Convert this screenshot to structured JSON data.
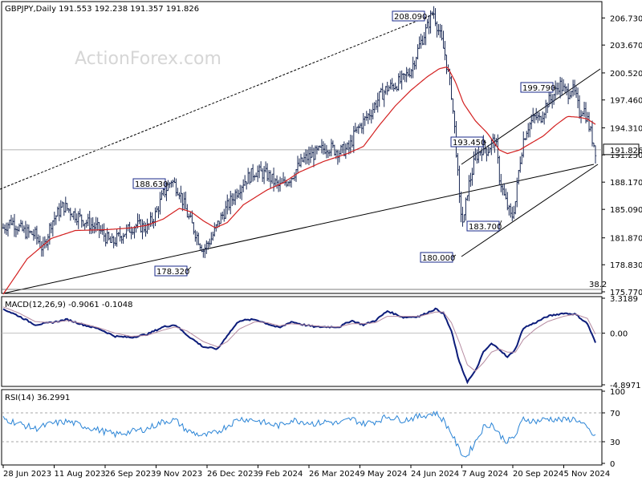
{
  "header": {
    "symbol_line": "GBPJPY,Daily  191.553 192.238 191.357 191.826",
    "watermark": "ActionForex.com"
  },
  "colors": {
    "price": "#1b2a55",
    "ma": "#d32020",
    "macd_main": "#0c1c7a",
    "macd_signal": "#b58aa0",
    "rsi": "#2a84d6",
    "trend": "#000000",
    "fib": "#555555"
  },
  "chart_data": [
    {
      "type": "line",
      "panel": "price",
      "title": "GBPJPY,Daily",
      "ohlc_latest": {
        "open": 191.553,
        "high": 192.238,
        "low": 191.357,
        "close": 191.826
      },
      "ylim": [
        175.77,
        208.4
      ],
      "y_ticks": [
        "206.730",
        "203.670",
        "200.520",
        "197.460",
        "194.310",
        "191.250",
        "188.170",
        "185.090",
        "181.870",
        "178.830",
        "175.770"
      ],
      "current_price_label": "191.826",
      "x_tick_labels": [
        "28 Jun 2023",
        "11 Aug 2023",
        "26 Sep 2023",
        "9 Nov 2023",
        "26 Dec 2023",
        "9 Feb 2024",
        "26 Mar 2024",
        "9 May 2024",
        "24 Jun 2024",
        "7 Aug 2024",
        "20 Sep 2024",
        "5 Nov 2024"
      ],
      "n_bars": 375,
      "price_anchors": [
        [
          0,
          183.0
        ],
        [
          10,
          183.8
        ],
        [
          25,
          182.6
        ],
        [
          40,
          182.2
        ],
        [
          50,
          180.5
        ],
        [
          60,
          183.6
        ],
        [
          75,
          185.5
        ],
        [
          90,
          184.5
        ],
        [
          105,
          183.6
        ],
        [
          120,
          182.8
        ],
        [
          135,
          181.2
        ],
        [
          150,
          182.4
        ],
        [
          165,
          183.3
        ],
        [
          180,
          183.0
        ],
        [
          190,
          184.5
        ],
        [
          200,
          186.8
        ],
        [
          210,
          188.4
        ],
        [
          220,
          187.2
        ],
        [
          230,
          184.5
        ],
        [
          240,
          182.5
        ],
        [
          250,
          180.5
        ],
        [
          260,
          181.8
        ],
        [
          270,
          183.8
        ],
        [
          280,
          185.4
        ],
        [
          290,
          186.9
        ],
        [
          300,
          188.2
        ],
        [
          315,
          189.4
        ],
        [
          330,
          189.0
        ],
        [
          345,
          187.6
        ],
        [
          360,
          188.8
        ],
        [
          375,
          190.7
        ],
        [
          390,
          191.4
        ],
        [
          405,
          192.2
        ],
        [
          420,
          191.6
        ],
        [
          432,
          192.0
        ],
        [
          440,
          193.8
        ],
        [
          450,
          195.0
        ],
        [
          460,
          196.2
        ],
        [
          470,
          197.8
        ],
        [
          480,
          198.8
        ],
        [
          490,
          199.2
        ],
        [
          500,
          199.8
        ],
        [
          510,
          201.0
        ],
        [
          520,
          203.6
        ],
        [
          530,
          205.7
        ],
        [
          537,
          207.6
        ],
        [
          545,
          205.0
        ],
        [
          552,
          202.6
        ],
        [
          560,
          198.2
        ],
        [
          565,
          193.2
        ],
        [
          570,
          186.0
        ],
        [
          575,
          183.2
        ],
        [
          580,
          187.2
        ],
        [
          585,
          189.0
        ],
        [
          590,
          191.0
        ],
        [
          595,
          191.6
        ],
        [
          600,
          192.2
        ],
        [
          605,
          191.7
        ],
        [
          610,
          192.6
        ],
        [
          615,
          192.9
        ],
        [
          620,
          188.8
        ],
        [
          625,
          186.8
        ],
        [
          630,
          185.4
        ],
        [
          635,
          184.0
        ],
        [
          640,
          186.0
        ],
        [
          645,
          190.2
        ],
        [
          650,
          193.0
        ],
        [
          655,
          194.4
        ],
        [
          660,
          195.0
        ],
        [
          665,
          195.6
        ],
        [
          670,
          195.2
        ],
        [
          675,
          196.2
        ],
        [
          680,
          197.2
        ],
        [
          685,
          197.6
        ],
        [
          690,
          198.4
        ],
        [
          695,
          199.3
        ],
        [
          700,
          198.6
        ],
        [
          705,
          198.2
        ],
        [
          710,
          198.8
        ],
        [
          715,
          198.0
        ],
        [
          720,
          196.0
        ],
        [
          725,
          196.6
        ],
        [
          730,
          195.2
        ],
        [
          735,
          193.4
        ],
        [
          740,
          191.8
        ]
      ],
      "ma_anchors": [
        [
          0,
          175.5
        ],
        [
          30,
          179.5
        ],
        [
          60,
          181.8
        ],
        [
          90,
          182.7
        ],
        [
          130,
          182.8
        ],
        [
          160,
          183.0
        ],
        [
          180,
          183.3
        ],
        [
          200,
          184.0
        ],
        [
          220,
          185.2
        ],
        [
          235,
          184.8
        ],
        [
          250,
          183.8
        ],
        [
          265,
          183.0
        ],
        [
          280,
          183.6
        ],
        [
          300,
          185.6
        ],
        [
          330,
          187.3
        ],
        [
          350,
          188.1
        ],
        [
          370,
          189.3
        ],
        [
          400,
          190.5
        ],
        [
          430,
          191.4
        ],
        [
          450,
          192.2
        ],
        [
          470,
          194.6
        ],
        [
          490,
          196.8
        ],
        [
          510,
          198.6
        ],
        [
          530,
          200.1
        ],
        [
          545,
          201.0
        ],
        [
          555,
          201.2
        ],
        [
          565,
          199.5
        ],
        [
          575,
          197.1
        ],
        [
          590,
          195.1
        ],
        [
          605,
          193.7
        ],
        [
          620,
          191.8
        ],
        [
          630,
          191.4
        ],
        [
          645,
          191.8
        ],
        [
          660,
          192.6
        ],
        [
          675,
          193.4
        ],
        [
          690,
          194.6
        ],
        [
          705,
          195.6
        ],
        [
          720,
          195.5
        ],
        [
          730,
          195.3
        ],
        [
          740,
          194.7
        ]
      ],
      "annotations": [
        {
          "text": "208.090",
          "value": 208.09
        },
        {
          "text": "188.630",
          "value": 188.63
        },
        {
          "text": "178.320",
          "value": 178.32
        },
        {
          "text": "193.450",
          "value": 193.45
        },
        {
          "text": "183.700",
          "value": 183.7
        },
        {
          "text": "180.000",
          "value": 180.0
        },
        {
          "text": "199.790",
          "value": 199.79
        }
      ],
      "fib_label": "38.2"
    },
    {
      "type": "line",
      "panel": "macd",
      "title": "MACD(12,26,9) -0.9061 -0.1048",
      "ylim": [
        -4.8971,
        3.3189
      ],
      "y_ticks": [
        "3.3189",
        "0.00",
        "-4.8971"
      ],
      "series": [
        {
          "name": "MACD",
          "values_anchor": [
            [
              0,
              2.3
            ],
            [
              20,
              1.6
            ],
            [
              40,
              0.8
            ],
            [
              60,
              1.0
            ],
            [
              80,
              1.3
            ],
            [
              100,
              0.8
            ],
            [
              120,
              0.4
            ],
            [
              140,
              -0.3
            ],
            [
              160,
              -0.4
            ],
            [
              180,
              -0.1
            ],
            [
              200,
              0.6
            ],
            [
              215,
              0.8
            ],
            [
              230,
              -0.2
            ],
            [
              250,
              -1.3
            ],
            [
              268,
              -1.5
            ],
            [
              280,
              -0.2
            ],
            [
              295,
              1.2
            ],
            [
              315,
              1.3
            ],
            [
              330,
              0.9
            ],
            [
              345,
              0.5
            ],
            [
              360,
              1.1
            ],
            [
              375,
              0.8
            ],
            [
              390,
              0.6
            ],
            [
              405,
              0.6
            ],
            [
              420,
              0.6
            ],
            [
              435,
              1.2
            ],
            [
              450,
              0.8
            ],
            [
              465,
              1.2
            ],
            [
              480,
              2.1
            ],
            [
              500,
              1.5
            ],
            [
              520,
              1.6
            ],
            [
              540,
              2.3
            ],
            [
              550,
              1.9
            ],
            [
              560,
              0.2
            ],
            [
              570,
              -2.8
            ],
            [
              580,
              -4.6
            ],
            [
              590,
              -3.6
            ],
            [
              600,
              -1.8
            ],
            [
              610,
              -1.0
            ],
            [
              620,
              -1.5
            ],
            [
              630,
              -2.3
            ],
            [
              640,
              -1.5
            ],
            [
              650,
              0.5
            ],
            [
              665,
              1.0
            ],
            [
              680,
              1.6
            ],
            [
              700,
              1.9
            ],
            [
              715,
              1.8
            ],
            [
              730,
              0.9
            ],
            [
              740,
              -0.9
            ]
          ]
        },
        {
          "name": "Signal",
          "values_anchor": [
            [
              0,
              2.5
            ],
            [
              20,
              1.9
            ],
            [
              40,
              1.1
            ],
            [
              60,
              1.0
            ],
            [
              80,
              1.2
            ],
            [
              100,
              0.9
            ],
            [
              120,
              0.5
            ],
            [
              140,
              0.0
            ],
            [
              160,
              -0.3
            ],
            [
              180,
              -0.2
            ],
            [
              200,
              0.3
            ],
            [
              215,
              0.6
            ],
            [
              230,
              0.2
            ],
            [
              250,
              -0.8
            ],
            [
              268,
              -1.3
            ],
            [
              280,
              -0.8
            ],
            [
              295,
              0.4
            ],
            [
              315,
              1.1
            ],
            [
              330,
              1.0
            ],
            [
              345,
              0.7
            ],
            [
              360,
              0.9
            ],
            [
              375,
              0.8
            ],
            [
              390,
              0.7
            ],
            [
              405,
              0.6
            ],
            [
              420,
              0.6
            ],
            [
              435,
              0.9
            ],
            [
              450,
              0.9
            ],
            [
              465,
              1.0
            ],
            [
              480,
              1.6
            ],
            [
              500,
              1.6
            ],
            [
              520,
              1.6
            ],
            [
              540,
              2.0
            ],
            [
              550,
              2.0
            ],
            [
              560,
              1.0
            ],
            [
              570,
              -0.9
            ],
            [
              580,
              -3.0
            ],
            [
              590,
              -3.6
            ],
            [
              600,
              -2.8
            ],
            [
              610,
              -1.8
            ],
            [
              620,
              -1.5
            ],
            [
              630,
              -1.8
            ],
            [
              640,
              -1.8
            ],
            [
              650,
              -0.6
            ],
            [
              665,
              0.4
            ],
            [
              680,
              1.1
            ],
            [
              700,
              1.6
            ],
            [
              715,
              1.8
            ],
            [
              730,
              1.4
            ],
            [
              740,
              -0.1
            ]
          ]
        }
      ]
    },
    {
      "type": "line",
      "panel": "rsi",
      "title": "RSI(14) 36.2991",
      "ylim": [
        0,
        100
      ],
      "y_ticks": [
        "100",
        "70",
        "30",
        "0"
      ],
      "series": [
        {
          "name": "RSI",
          "values_anchor": [
            [
              0,
              62
            ],
            [
              20,
              55
            ],
            [
              40,
              48
            ],
            [
              60,
              55
            ],
            [
              80,
              58
            ],
            [
              100,
              52
            ],
            [
              120,
              46
            ],
            [
              140,
              40
            ],
            [
              160,
              44
            ],
            [
              180,
              48
            ],
            [
              200,
              58
            ],
            [
              215,
              60
            ],
            [
              230,
              45
            ],
            [
              250,
              38
            ],
            [
              265,
              42
            ],
            [
              280,
              52
            ],
            [
              295,
              62
            ],
            [
              315,
              60
            ],
            [
              330,
              55
            ],
            [
              345,
              52
            ],
            [
              360,
              60
            ],
            [
              375,
              58
            ],
            [
              390,
              55
            ],
            [
              405,
              58
            ],
            [
              420,
              55
            ],
            [
              435,
              62
            ],
            [
              450,
              55
            ],
            [
              465,
              58
            ],
            [
              480,
              65
            ],
            [
              500,
              60
            ],
            [
              520,
              65
            ],
            [
              540,
              70
            ],
            [
              550,
              60
            ],
            [
              560,
              42
            ],
            [
              570,
              18
            ],
            [
              578,
              8
            ],
            [
              590,
              30
            ],
            [
              600,
              50
            ],
            [
              610,
              55
            ],
            [
              620,
              40
            ],
            [
              630,
              30
            ],
            [
              640,
              38
            ],
            [
              650,
              62
            ],
            [
              665,
              58
            ],
            [
              680,
              62
            ],
            [
              700,
              60
            ],
            [
              715,
              62
            ],
            [
              730,
              48
            ],
            [
              740,
              36
            ]
          ]
        }
      ]
    }
  ]
}
